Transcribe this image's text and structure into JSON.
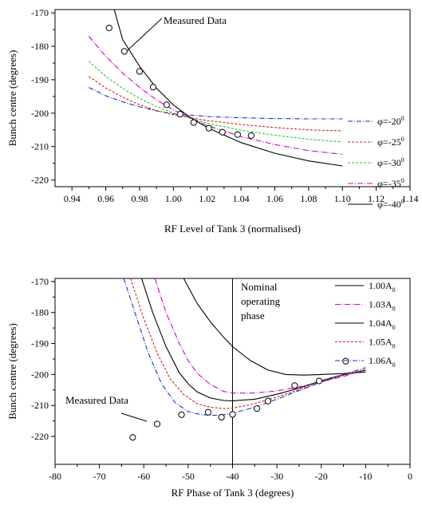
{
  "chart_data": [
    {
      "type": "line",
      "xlabel": "RF Level of Tank 3 (normalised)",
      "ylabel": "Bunch centre (degrees)",
      "xlim": [
        0.93,
        1.14
      ],
      "ylim": [
        -222,
        -169
      ],
      "x_ticks": [
        "0.94",
        "0.96",
        "0.98",
        "1.00",
        "1.02",
        "1.04",
        "1.06",
        "1.08",
        "1.10",
        "1.12",
        "1.14"
      ],
      "x_tick_values": [
        0.94,
        0.96,
        0.98,
        1.0,
        1.02,
        1.04,
        1.06,
        1.08,
        1.1,
        1.12,
        1.14
      ],
      "y_ticks": [
        "-170",
        "-180",
        "-190",
        "-200",
        "-210",
        "-220"
      ],
      "y_tick_values": [
        -170,
        -180,
        -190,
        -200,
        -210,
        -220
      ],
      "grid": false,
      "legend_position": "right",
      "annotation": "Measured Data",
      "series": [
        {
          "name": "φ=-20",
          "sup": "0",
          "color": "#1f2fd0",
          "dash": "6,2,1,2",
          "x": [
            0.95,
            0.96,
            0.97,
            0.98,
            0.99,
            1.0,
            1.02,
            1.04,
            1.06,
            1.08,
            1.1
          ],
          "y": [
            -192.3,
            -194.8,
            -196.6,
            -198.1,
            -199.3,
            -200.2,
            -201.0,
            -201.4,
            -201.6,
            -201.7,
            -201.7
          ]
        },
        {
          "name": "φ=-25",
          "sup": "0",
          "color": "#d42020",
          "dash": "3,2",
          "x": [
            0.95,
            0.96,
            0.97,
            0.98,
            0.99,
            1.0,
            1.02,
            1.04,
            1.06,
            1.08,
            1.1
          ],
          "y": [
            -189.0,
            -192.5,
            -195.2,
            -197.5,
            -199.2,
            -200.5,
            -202.2,
            -203.4,
            -204.3,
            -205.0,
            -205.3
          ]
        },
        {
          "name": "φ=-30",
          "sup": "0",
          "color": "#22cc22",
          "dash": "3,2",
          "x": [
            0.95,
            0.96,
            0.97,
            0.98,
            0.99,
            1.0,
            1.02,
            1.04,
            1.06,
            1.08,
            1.1
          ],
          "y": [
            -184.5,
            -189.0,
            -192.6,
            -195.6,
            -198.0,
            -200.0,
            -203.0,
            -205.1,
            -206.6,
            -207.8,
            -208.6
          ]
        },
        {
          "name": "φ=-35",
          "sup": "0",
          "color": "#cc00cc",
          "dash": "7,2,1,2",
          "x": [
            0.95,
            0.96,
            0.97,
            0.98,
            0.99,
            1.0,
            1.02,
            1.04,
            1.06,
            1.08,
            1.1
          ],
          "y": [
            -177.0,
            -183.0,
            -188.0,
            -192.3,
            -196.0,
            -199.0,
            -203.7,
            -207.0,
            -209.4,
            -211.2,
            -212.3
          ]
        },
        {
          "name": "φ=-40",
          "sup": "0",
          "color": "#000000",
          "dash": "",
          "x": [
            0.965,
            0.97,
            0.98,
            0.99,
            1.0,
            1.01,
            1.02,
            1.04,
            1.06,
            1.08,
            1.1
          ],
          "y": [
            -169.0,
            -178.0,
            -186.0,
            -192.5,
            -197.5,
            -201.3,
            -204.3,
            -208.8,
            -212.0,
            -214.3,
            -215.8
          ]
        }
      ],
      "markers": {
        "name": "Measured Data",
        "x": [
          0.962,
          0.971,
          0.98,
          0.988,
          0.996,
          1.004,
          1.012,
          1.021,
          1.029,
          1.038,
          1.046
        ],
        "y": [
          -174.5,
          -181.5,
          -187.5,
          -192.2,
          -197.5,
          -200.3,
          -202.8,
          -204.5,
          -205.7,
          -206.4,
          -206.7
        ]
      }
    },
    {
      "type": "line",
      "xlabel": "RF Phase of Tank 3 (degrees)",
      "ylabel": "Bunch centre (degrees)",
      "xlim": [
        -80,
        0
      ],
      "ylim": [
        -229,
        -169
      ],
      "x_ticks": [
        "-80",
        "-70",
        "-60",
        "-50",
        "-40",
        "-30",
        "-20",
        "-10",
        "0"
      ],
      "x_tick_values": [
        -80,
        -70,
        -60,
        -50,
        -40,
        -30,
        -20,
        -10,
        0
      ],
      "y_ticks": [
        "-170",
        "-180",
        "-190",
        "-200",
        "-210",
        "-220"
      ],
      "y_tick_values": [
        -170,
        -180,
        -190,
        -200,
        -210,
        -220
      ],
      "grid": false,
      "legend_position": "top-right",
      "vline_x": -40,
      "vline_label": [
        "Nominal",
        "operating",
        "phase"
      ],
      "annotation": "Measured Data",
      "series": [
        {
          "name": "1.00A",
          "sub": "0",
          "color": "#000000",
          "dash": "",
          "x": [
            -51,
            -48,
            -45,
            -42,
            -40,
            -36,
            -32,
            -28,
            -24,
            -20,
            -15,
            -10
          ],
          "y": [
            -169,
            -177,
            -183,
            -188,
            -191,
            -195.5,
            -198.6,
            -200.0,
            -200.2,
            -200.0,
            -199.7,
            -199.2
          ]
        },
        {
          "name": "1.03A",
          "sub": "0",
          "color": "#cc00cc",
          "dash": "7,2,1,2",
          "x": [
            -57.5,
            -55,
            -52,
            -50,
            -48,
            -45,
            -42,
            -40,
            -35,
            -30,
            -25,
            -20,
            -15,
            -10
          ],
          "y": [
            -169,
            -180,
            -190,
            -195.5,
            -199.6,
            -203.2,
            -205.5,
            -206.0,
            -206.0,
            -205.3,
            -204.0,
            -202.4,
            -200.6,
            -198.5
          ]
        },
        {
          "name": "1.04A",
          "sub": "0",
          "color": "#000000",
          "dash": "",
          "x": [
            -60.5,
            -58,
            -55,
            -52,
            -50,
            -48,
            -45,
            -42,
            -40,
            -35,
            -30,
            -25,
            -20,
            -15,
            -10
          ],
          "y": [
            -169,
            -180,
            -191,
            -199.5,
            -203,
            -205.6,
            -207.6,
            -208.4,
            -208.5,
            -208.0,
            -206.4,
            -204.4,
            -202.0,
            -200.0,
            -198.6
          ]
        },
        {
          "name": "1.05A",
          "sub": "0",
          "color": "#d42020",
          "dash": "3,2",
          "x": [
            -63,
            -60,
            -57,
            -54,
            -51,
            -48,
            -45,
            -42,
            -40,
            -35,
            -30,
            -25,
            -20,
            -15,
            -10
          ],
          "y": [
            -169,
            -182,
            -193,
            -201.5,
            -206.5,
            -209.4,
            -210.6,
            -211.0,
            -210.9,
            -209.4,
            -207.3,
            -204.9,
            -202.4,
            -200.3,
            -198.4
          ]
        },
        {
          "name": "1.06A",
          "sub": "0",
          "color": "#1f2fd0",
          "dash": "6,2,1,2",
          "x": [
            -64.5,
            -62,
            -59,
            -56,
            -53,
            -50,
            -47,
            -44,
            -42,
            -40,
            -35,
            -30,
            -25,
            -20,
            -15,
            -10
          ],
          "y": [
            -169,
            -180,
            -193,
            -203,
            -209,
            -212.0,
            -213.0,
            -213.2,
            -213.0,
            -212.5,
            -210.6,
            -208.0,
            -205.2,
            -202.4,
            -200.0,
            -197.8
          ]
        }
      ],
      "markers": {
        "name": "Measured Data",
        "x": [
          -62.5,
          -57,
          -51.5,
          -45.5,
          -42.5,
          -40,
          -34.5,
          -32,
          -26,
          -20.5,
          -14.5
        ],
        "y": [
          -220.3,
          -216.0,
          -213.0,
          -212.2,
          -213.8,
          -212.9,
          -211.0,
          -208.6,
          -203.6,
          -202.1,
          -195.7
        ]
      }
    }
  ]
}
